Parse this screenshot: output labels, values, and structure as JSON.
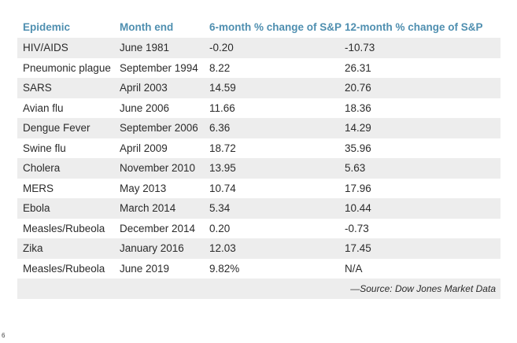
{
  "table": {
    "headers": [
      "Epidemic",
      "Month end",
      "6-month % change of S&P",
      "12-month % change of S&P"
    ],
    "rows": [
      [
        "HIV/AIDS",
        "June 1981",
        "-0.20",
        "-10.73"
      ],
      [
        "Pneumonic plague",
        "September 1994",
        "8.22",
        "26.31"
      ],
      [
        "SARS",
        "April 2003",
        "14.59",
        "20.76"
      ],
      [
        "Avian flu",
        "June 2006",
        "11.66",
        "18.36"
      ],
      [
        "Dengue Fever",
        "September 2006",
        "6.36",
        "14.29"
      ],
      [
        "Swine flu",
        "April 2009",
        "18.72",
        "35.96"
      ],
      [
        "Cholera",
        "November 2010",
        "13.95",
        "5.63"
      ],
      [
        "MERS",
        "May 2013",
        "10.74",
        "17.96"
      ],
      [
        "Ebola",
        "March 2014",
        "5.34",
        "10.44"
      ],
      [
        "Measles/Rubeola",
        "December 2014",
        "0.20",
        "-0.73"
      ],
      [
        "Zika",
        "January 2016",
        "12.03",
        "17.45"
      ],
      [
        "Measles/Rubeola",
        "June 2019",
        "9.82%",
        "N/A"
      ]
    ],
    "source": "—Source: Dow Jones Market Data"
  },
  "page_number": "6",
  "colors": {
    "header_text": "#4f8fb0",
    "stripe": "#ededed",
    "body_text": "#2b2b2b"
  }
}
